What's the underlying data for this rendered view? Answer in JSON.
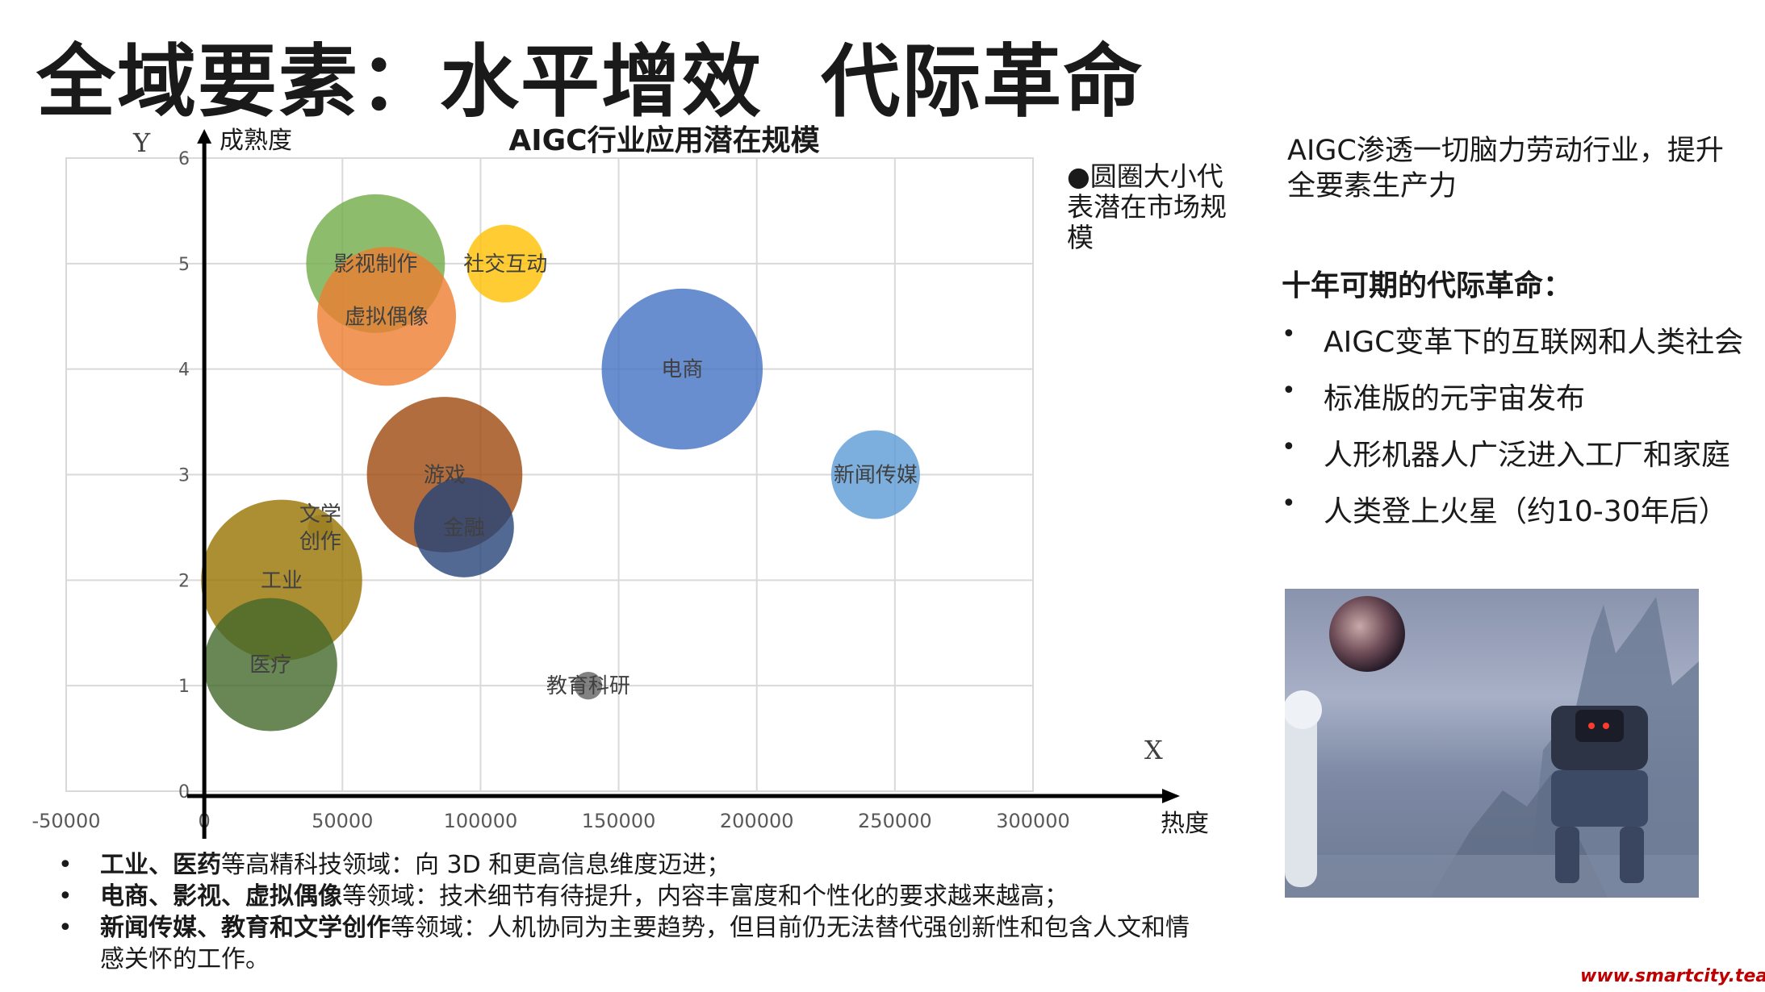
{
  "slide": {
    "title": "全域要素：水平增效  代际革命",
    "watermark": "www.smartcity.team"
  },
  "chart_data": {
    "type": "scatter",
    "title": "AIGC行业应用潜在规模",
    "xlabel": "热度",
    "ylabel": "成熟度",
    "x_axis_letter": "X",
    "y_axis_letter": "Y",
    "xlim": [
      -50000,
      300000
    ],
    "ylim": [
      0,
      6
    ],
    "xticks": [
      "-50000",
      "0",
      "50000",
      "100000",
      "150000",
      "200000",
      "250000",
      "300000"
    ],
    "yticks": [
      "0",
      "1",
      "2",
      "3",
      "4",
      "5",
      "6"
    ],
    "grid": true,
    "points": [
      {
        "label": "影视制作",
        "x": 62000,
        "y": 5.0,
        "size": 50,
        "color": "#70ad47"
      },
      {
        "label": "社交互动",
        "x": 109000,
        "y": 5.0,
        "size": 28,
        "color": "#ffc000"
      },
      {
        "label": "虚拟偶像",
        "x": 66000,
        "y": 4.5,
        "size": 50,
        "color": "#ed7d31"
      },
      {
        "label": "电商",
        "x": 173000,
        "y": 4.0,
        "size": 58,
        "color": "#4472c4"
      },
      {
        "label": "新闻传媒",
        "x": 243000,
        "y": 3.0,
        "size": 32,
        "color": "#5b9bd5"
      },
      {
        "label": "游戏",
        "x": 87000,
        "y": 3.0,
        "size": 56,
        "color": "#9e480e"
      },
      {
        "label": "文学\n创作",
        "x": 42000,
        "y": 2.5,
        "size": 9,
        "color": "#a5a5a5"
      },
      {
        "label": "金融",
        "x": 94000,
        "y": 2.5,
        "size": 36,
        "color": "#264478"
      },
      {
        "label": "工业",
        "x": 28000,
        "y": 2.0,
        "size": 58,
        "color": "#997300"
      },
      {
        "label": "医疗",
        "x": 24000,
        "y": 1.2,
        "size": 48,
        "color": "#43682b"
      },
      {
        "label": "教育科研",
        "x": 139000,
        "y": 1.0,
        "size": 10,
        "color": "#636363"
      }
    ],
    "legend_note": "●圆圈大小代表潜在市场规模"
  },
  "right_panel": {
    "intro": "AIGC渗透一切脑力劳动行业，提升全要素生产力",
    "heading": "十年可期的代际革命：",
    "items": [
      "AIGC变革下的互联网和人类社会",
      "标准版的元宇宙发布",
      "人形机器人广泛进入工厂和家庭",
      "人类登上火星（约10-30年后）"
    ]
  },
  "bottom_notes": [
    {
      "bold": "工业、医药",
      "rest": "等高精科技领域：向 3D 和更高信息维度迈进；"
    },
    {
      "bold": "电商、影视、虚拟偶像",
      "rest": "等领域：技术细节有待提升，内容丰富度和个性化的要求越来越高；"
    },
    {
      "bold": "新闻传媒、教育和文学创作",
      "rest": "等领域：人机协同为主要趋势，但目前仍无法替代强创新性和包含人文和情感关怀的工作。"
    }
  ],
  "bullet": "•"
}
